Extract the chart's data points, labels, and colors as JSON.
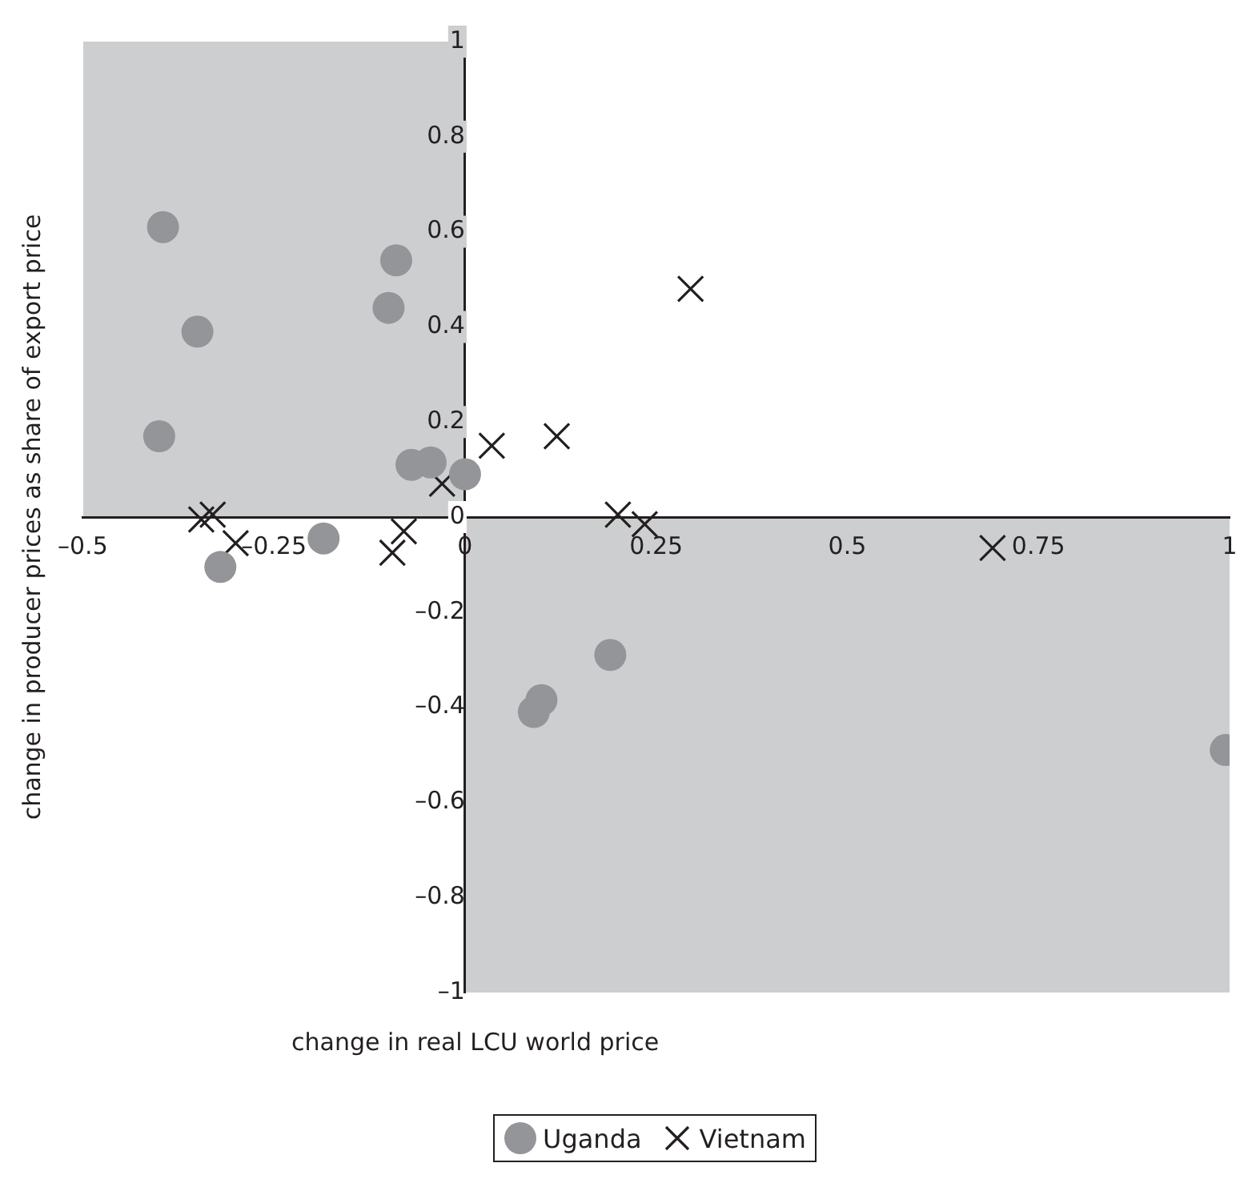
{
  "chart_data": {
    "type": "scatter",
    "xlabel": "change in real LCU world price",
    "ylabel": "change in producer prices as share of export price",
    "legend": "bottom",
    "grid": false,
    "xlim": [
      -0.5,
      1
    ],
    "ylim": [
      -1,
      1
    ],
    "xticks": [
      {
        "value": -0.5,
        "label": "–0.5"
      },
      {
        "value": -0.25,
        "label": "–0.25"
      },
      0,
      0.25,
      0.5,
      0.75,
      1
    ],
    "yticks": [
      {
        "value": -1,
        "label": "–1"
      },
      {
        "value": -0.8,
        "label": "–0.8"
      },
      {
        "value": -0.6,
        "label": "–0.6"
      },
      {
        "value": -0.4,
        "label": "–0.4"
      },
      {
        "value": -0.2,
        "label": "–0.2"
      },
      0,
      0.2,
      0.4,
      0.6,
      0.8,
      1
    ],
    "series": [
      {
        "name": "Uganda",
        "color": "#939598",
        "marker": "circle",
        "x": [
          -0.395,
          -0.35,
          -0.4,
          -0.32,
          -0.185,
          -0.09,
          -0.1,
          -0.07,
          -0.045,
          0.0,
          0.19,
          0.1,
          0.09,
          0.995
        ],
        "values": [
          0.61,
          0.39,
          0.17,
          -0.105,
          -0.045,
          0.54,
          0.44,
          0.11,
          0.115,
          0.09,
          -0.29,
          -0.385,
          -0.41,
          -0.49
        ]
      },
      {
        "name": "Vietnam",
        "color": "#231f20",
        "marker": "cross",
        "x": [
          -0.345,
          -0.33,
          -0.3,
          -0.095,
          -0.08,
          -0.03,
          0.035,
          0.12,
          0.2,
          0.235,
          0.295,
          0.69
        ],
        "values": [
          -0.005,
          0.005,
          -0.055,
          -0.075,
          -0.03,
          0.07,
          0.15,
          0.17,
          0.005,
          -0.015,
          0.48,
          -0.065
        ]
      }
    ]
  }
}
